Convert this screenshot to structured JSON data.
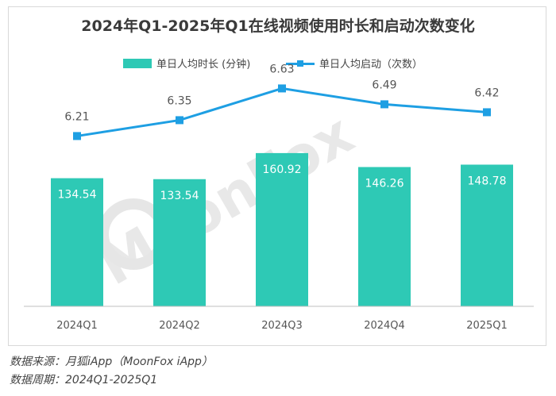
{
  "chart_data": {
    "type": "bar",
    "title": "2024年Q1-2025年Q1在线视频使用时长和启动次数变化",
    "categories": [
      "2024Q1",
      "2024Q2",
      "2024Q3",
      "2024Q4",
      "2025Q1"
    ],
    "series": [
      {
        "name": "单日人均时长 (分钟)",
        "type": "bar",
        "values": [
          134.54,
          133.54,
          160.92,
          146.26,
          148.78
        ],
        "color": "#2ec9b5",
        "ylim": [
          0,
          200
        ]
      },
      {
        "name": "单日人均启动（次数）",
        "type": "line",
        "values": [
          6.21,
          6.35,
          6.63,
          6.49,
          6.42
        ],
        "color": "#1e9fe3",
        "ylim": [
          5.1,
          7.2
        ]
      }
    ],
    "legend_position": "top-center",
    "grid": false
  },
  "watermark": "MoonFox",
  "footer": {
    "source": "数据来源：月狐iApp（MoonFox iApp）",
    "period": "数据周期：2024Q1-2025Q1"
  }
}
